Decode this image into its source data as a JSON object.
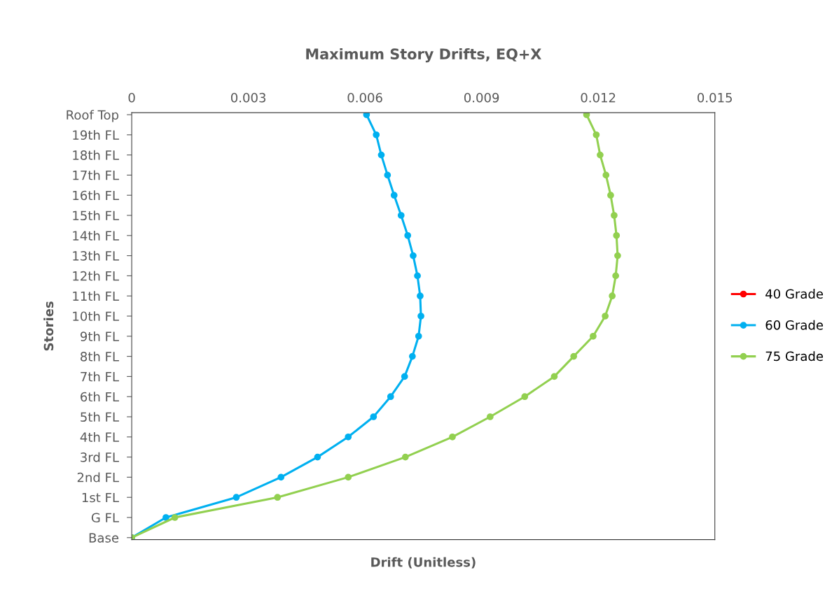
{
  "chart_data": {
    "type": "line",
    "orientation": "horizontal",
    "title": "Maximum Story Drifts, EQ+X",
    "xlabel": "Drift (Unitless)",
    "ylabel": "Stories",
    "categories": [
      "Roof Top",
      "19th FL",
      "18th FL",
      "17th FL",
      "16th FL",
      "15th FL",
      "14th FL",
      "13th FL",
      "12th FL",
      "11th FL",
      "10th FL",
      "9th FL",
      "8th FL",
      "7th FL",
      "6th FL",
      "5th FL",
      "4th FL",
      "3rd FL",
      "2nd FL",
      "1st FL",
      "G FL",
      "Base"
    ],
    "xlim": [
      0,
      0.015
    ],
    "xticks": [
      0,
      0.003,
      0.006,
      0.009,
      0.012,
      0.015
    ],
    "grid": false,
    "legend": "right",
    "marker": "circle",
    "line_style": "solid",
    "series": [
      {
        "name": "40 Grade",
        "color": "#ff0000",
        "values": [
          null,
          null,
          null,
          null,
          null,
          null,
          null,
          null,
          null,
          null,
          null,
          null,
          null,
          null,
          null,
          null,
          null,
          null,
          null,
          null,
          null,
          null
        ]
      },
      {
        "name": "60 Grade",
        "color": "#00b0f0",
        "values": [
          0.00604,
          0.00629,
          0.00642,
          0.00658,
          0.00675,
          0.00693,
          0.0071,
          0.00724,
          0.00735,
          0.00742,
          0.00744,
          0.00738,
          0.00722,
          0.00702,
          0.00666,
          0.00622,
          0.00557,
          0.00478,
          0.00384,
          0.00269,
          0.00088,
          0
        ]
      },
      {
        "name": "75 Grade",
        "color": "#92d050",
        "values": [
          0.0117,
          0.01195,
          0.01205,
          0.0122,
          0.01232,
          0.01241,
          0.01247,
          0.0125,
          0.01245,
          0.01236,
          0.01218,
          0.01187,
          0.01137,
          0.01087,
          0.01011,
          0.00922,
          0.00825,
          0.00704,
          0.00557,
          0.00375,
          0.00111,
          0
        ]
      }
    ]
  }
}
